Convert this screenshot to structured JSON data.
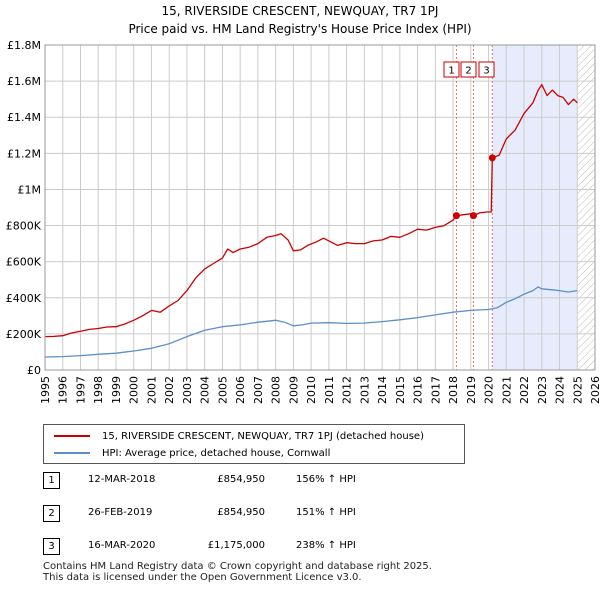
{
  "title_line1": "15, RIVERSIDE CRESCENT, NEWQUAY, TR7 1PJ",
  "title_line2": "Price paid vs. HM Land Registry's House Price Index (HPI)",
  "colors": {
    "property": "#cc0000",
    "hpi": "#5b8fc9",
    "shade": "#e6ecfb",
    "grid": "#cccccc",
    "vline": "#e07070"
  },
  "chart_data": {
    "type": "line",
    "ylim": [
      0,
      1800000
    ],
    "xlim": [
      1995,
      2026
    ],
    "y_ticks": [
      {
        "value": 0,
        "label": "£0"
      },
      {
        "value": 200000,
        "label": "£200K"
      },
      {
        "value": 400000,
        "label": "£400K"
      },
      {
        "value": 600000,
        "label": "£600K"
      },
      {
        "value": 800000,
        "label": "£800K"
      },
      {
        "value": 1000000,
        "label": "£1M"
      },
      {
        "value": 1200000,
        "label": "£1.2M"
      },
      {
        "value": 1400000,
        "label": "£1.4M"
      },
      {
        "value": 1600000,
        "label": "£1.6M"
      },
      {
        "value": 1800000,
        "label": "£1.8M"
      }
    ],
    "x_ticks": [
      "1995",
      "1996",
      "1997",
      "1998",
      "1999",
      "2000",
      "2001",
      "2002",
      "2003",
      "2004",
      "2005",
      "2006",
      "2007",
      "2008",
      "2009",
      "2010",
      "2011",
      "2012",
      "2013",
      "2014",
      "2015",
      "2016",
      "2017",
      "2018",
      "2019",
      "2020",
      "2021",
      "2022",
      "2023",
      "2024",
      "2025",
      "2026"
    ],
    "shade_range": [
      2020.21,
      2025.0
    ],
    "future_hatch_start": 2025.0,
    "series": [
      {
        "name": "15, RIVERSIDE CRESCENT, NEWQUAY, TR7 1PJ (detached house)",
        "color": "#cc0000",
        "points": [
          [
            1995.0,
            185000
          ],
          [
            1995.5,
            186000
          ],
          [
            1996.0,
            190000
          ],
          [
            1996.5,
            205000
          ],
          [
            1997.0,
            215000
          ],
          [
            1997.5,
            225000
          ],
          [
            1998.0,
            230000
          ],
          [
            1998.5,
            238000
          ],
          [
            1999.0,
            240000
          ],
          [
            1999.5,
            255000
          ],
          [
            2000.0,
            275000
          ],
          [
            2000.5,
            300000
          ],
          [
            2001.0,
            330000
          ],
          [
            2001.5,
            320000
          ],
          [
            2002.0,
            355000
          ],
          [
            2002.5,
            385000
          ],
          [
            2003.0,
            440000
          ],
          [
            2003.5,
            510000
          ],
          [
            2004.0,
            560000
          ],
          [
            2004.5,
            590000
          ],
          [
            2005.0,
            620000
          ],
          [
            2005.3,
            670000
          ],
          [
            2005.6,
            650000
          ],
          [
            2006.0,
            670000
          ],
          [
            2006.5,
            680000
          ],
          [
            2007.0,
            700000
          ],
          [
            2007.5,
            735000
          ],
          [
            2008.0,
            745000
          ],
          [
            2008.3,
            755000
          ],
          [
            2008.7,
            720000
          ],
          [
            2009.0,
            660000
          ],
          [
            2009.4,
            665000
          ],
          [
            2009.8,
            690000
          ],
          [
            2010.3,
            710000
          ],
          [
            2010.7,
            730000
          ],
          [
            2011.0,
            715000
          ],
          [
            2011.5,
            690000
          ],
          [
            2012.0,
            705000
          ],
          [
            2012.5,
            700000
          ],
          [
            2013.0,
            700000
          ],
          [
            2013.5,
            715000
          ],
          [
            2014.0,
            720000
          ],
          [
            2014.5,
            740000
          ],
          [
            2015.0,
            735000
          ],
          [
            2015.5,
            755000
          ],
          [
            2016.0,
            780000
          ],
          [
            2016.5,
            775000
          ],
          [
            2017.0,
            790000
          ],
          [
            2017.5,
            800000
          ],
          [
            2018.0,
            830000
          ],
          [
            2018.19,
            854950
          ],
          [
            2018.6,
            860000
          ],
          [
            2019.0,
            865000
          ],
          [
            2019.15,
            854950
          ],
          [
            2019.5,
            870000
          ],
          [
            2019.9,
            875000
          ],
          [
            2020.15,
            875000
          ],
          [
            2020.21,
            1175000
          ],
          [
            2020.6,
            1190000
          ],
          [
            2021.0,
            1280000
          ],
          [
            2021.5,
            1330000
          ],
          [
            2022.0,
            1420000
          ],
          [
            2022.5,
            1480000
          ],
          [
            2022.8,
            1550000
          ],
          [
            2023.0,
            1580000
          ],
          [
            2023.3,
            1520000
          ],
          [
            2023.6,
            1550000
          ],
          [
            2023.9,
            1520000
          ],
          [
            2024.2,
            1510000
          ],
          [
            2024.5,
            1470000
          ],
          [
            2024.8,
            1500000
          ],
          [
            2025.0,
            1480000
          ]
        ],
        "markers": [
          [
            2018.19,
            854950
          ],
          [
            2019.15,
            854950
          ],
          [
            2020.21,
            1175000
          ]
        ]
      },
      {
        "name": "HPI: Average price, detached house, Cornwall",
        "color": "#5b8fc9",
        "points": [
          [
            1995.0,
            72000
          ],
          [
            1996.0,
            74000
          ],
          [
            1997.0,
            80000
          ],
          [
            1998.0,
            87000
          ],
          [
            1999.0,
            93000
          ],
          [
            2000.0,
            105000
          ],
          [
            2001.0,
            120000
          ],
          [
            2002.0,
            145000
          ],
          [
            2003.0,
            185000
          ],
          [
            2004.0,
            220000
          ],
          [
            2005.0,
            240000
          ],
          [
            2006.0,
            250000
          ],
          [
            2007.0,
            265000
          ],
          [
            2008.0,
            275000
          ],
          [
            2008.5,
            265000
          ],
          [
            2009.0,
            245000
          ],
          [
            2009.5,
            250000
          ],
          [
            2010.0,
            260000
          ],
          [
            2011.0,
            262000
          ],
          [
            2012.0,
            258000
          ],
          [
            2013.0,
            260000
          ],
          [
            2014.0,
            268000
          ],
          [
            2015.0,
            278000
          ],
          [
            2016.0,
            290000
          ],
          [
            2017.0,
            305000
          ],
          [
            2018.0,
            320000
          ],
          [
            2019.0,
            330000
          ],
          [
            2020.0,
            335000
          ],
          [
            2020.5,
            345000
          ],
          [
            2021.0,
            375000
          ],
          [
            2021.5,
            395000
          ],
          [
            2022.0,
            420000
          ],
          [
            2022.5,
            440000
          ],
          [
            2022.8,
            460000
          ],
          [
            2023.0,
            450000
          ],
          [
            2023.5,
            445000
          ],
          [
            2024.0,
            440000
          ],
          [
            2024.5,
            432000
          ],
          [
            2025.0,
            440000
          ]
        ]
      }
    ],
    "sale_lines": [
      {
        "x": 2018.19,
        "label": "1"
      },
      {
        "x": 2019.15,
        "label": "2"
      },
      {
        "x": 2020.21,
        "label": "3"
      }
    ]
  },
  "legend": {
    "property_label": "15, RIVERSIDE CRESCENT, NEWQUAY, TR7 1PJ (detached house)",
    "hpi_label": "HPI: Average price, detached house, Cornwall"
  },
  "sales": [
    {
      "num": "1",
      "date": "12-MAR-2018",
      "price": "£854,950",
      "hpi": "156% ↑ HPI"
    },
    {
      "num": "2",
      "date": "26-FEB-2019",
      "price": "£854,950",
      "hpi": "151% ↑ HPI"
    },
    {
      "num": "3",
      "date": "16-MAR-2020",
      "price": "£1,175,000",
      "hpi": "238% ↑ HPI"
    }
  ],
  "footer_line1": "Contains HM Land Registry data © Crown copyright and database right 2025.",
  "footer_line2": "This data is licensed under the Open Government Licence v3.0."
}
